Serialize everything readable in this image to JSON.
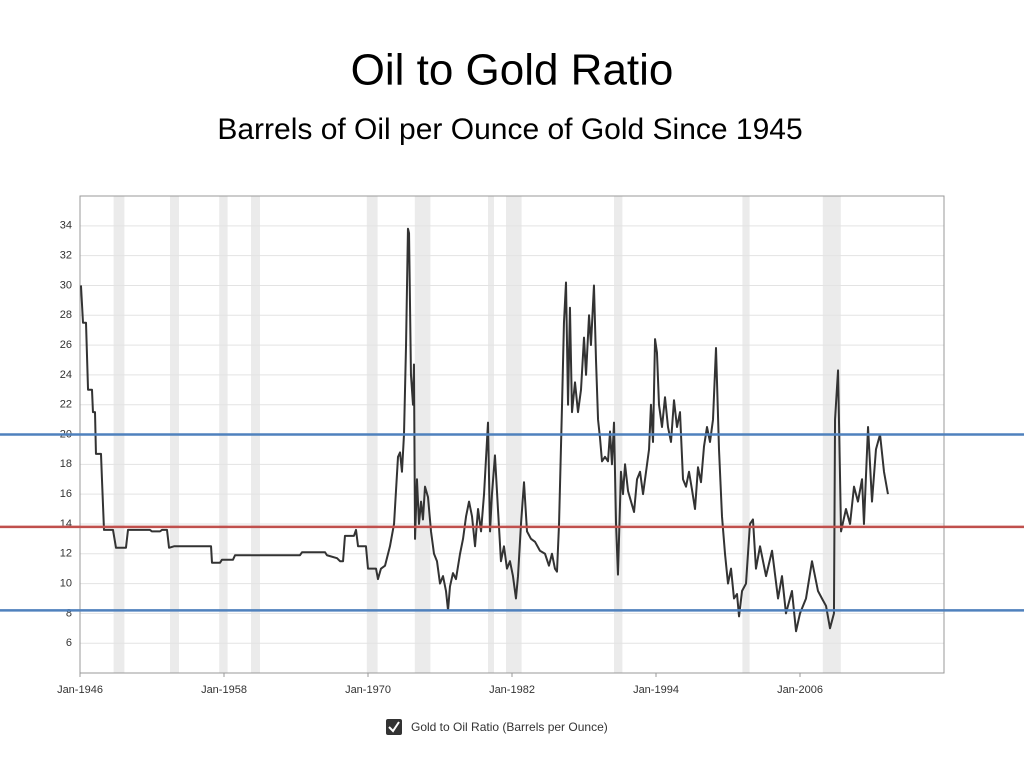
{
  "chart_data": {
    "type": "line",
    "title": "Oil to Gold Ratio",
    "subtitle": "Barrels of Oil per Ounce of Gold Since 1945",
    "x": [
      1946.08,
      1946.25,
      1946.5,
      1946.67,
      1947.0,
      1947.08,
      1947.25,
      1947.33,
      1947.75,
      1947.83,
      1948.0,
      1948.75,
      1949.0,
      1949.83,
      1950.0,
      1951.83,
      1952.0,
      1952.67,
      1952.83,
      1953.25,
      1953.42,
      1953.83,
      1956.92,
      1957.0,
      1957.67,
      1957.83,
      1958.75,
      1958.92,
      1964.33,
      1964.5,
      1966.42,
      1966.58,
      1967.42,
      1967.67,
      1967.92,
      1968.08,
      1968.83,
      1969.0,
      1969.17,
      1969.83,
      1970.0,
      1970.67,
      1970.83,
      1971.08,
      1971.42,
      1971.83,
      1972.17,
      1972.5,
      1972.67,
      1972.83,
      1973.0,
      1973.17,
      1973.33,
      1973.42,
      1973.58,
      1973.75,
      1973.83,
      1973.92,
      1974.08,
      1974.25,
      1974.42,
      1974.58,
      1974.75,
      1975.0,
      1975.25,
      1975.5,
      1975.75,
      1976.0,
      1976.25,
      1976.5,
      1976.67,
      1976.83,
      1977.08,
      1977.33,
      1977.67,
      1977.92,
      1978.17,
      1978.42,
      1978.67,
      1978.92,
      1979.17,
      1979.42,
      1979.67,
      1980.0,
      1980.17,
      1980.33,
      1980.58,
      1980.83,
      1981.08,
      1981.33,
      1981.58,
      1981.83,
      1982.08,
      1982.33,
      1982.5,
      1982.75,
      1983.0,
      1983.25,
      1983.58,
      1983.92,
      1984.33,
      1984.75,
      1985.08,
      1985.33,
      1985.58,
      1985.75,
      1985.92,
      1986.17,
      1986.33,
      1986.5,
      1986.67,
      1986.83,
      1987.0,
      1987.25,
      1987.5,
      1987.75,
      1988.0,
      1988.17,
      1988.42,
      1988.58,
      1988.83,
      1989.0,
      1989.17,
      1989.33,
      1989.5,
      1989.75,
      1990.0,
      1990.17,
      1990.33,
      1990.5,
      1990.67,
      1990.83,
      1991.08,
      1991.25,
      1991.42,
      1991.67,
      1991.92,
      1992.17,
      1992.42,
      1992.67,
      1992.92,
      1993.17,
      1993.42,
      1993.58,
      1993.75,
      1993.92,
      1994.08,
      1994.25,
      1994.5,
      1994.75,
      1995.0,
      1995.25,
      1995.5,
      1995.75,
      1996.0,
      1996.25,
      1996.5,
      1996.75,
      1997.0,
      1997.25,
      1997.5,
      1997.75,
      1998.0,
      1998.25,
      1998.5,
      1998.75,
      1999.0,
      1999.25,
      1999.5,
      1999.75,
      2000.0,
      2000.25,
      2000.5,
      2000.75,
      2000.92,
      2001.17,
      2001.5,
      2001.83,
      2002.08,
      2002.33,
      2002.67,
      2003.17,
      2003.67,
      2004.17,
      2004.5,
      2004.83,
      2005.33,
      2005.67,
      2006.0,
      2006.5,
      2007.0,
      2007.5,
      2007.83,
      2008.17,
      2008.5,
      2008.83,
      2008.92,
      2009.17,
      2009.42,
      2009.83,
      2010.17,
      2010.5,
      2010.83,
      2011.17,
      2011.33,
      2011.67,
      2012.0,
      2012.33,
      2012.67,
      2013.0,
      2013.33
    ],
    "series": [
      {
        "name": "Gold to Oil Ratio (Barrels per Ounce)",
        "color": "#333333",
        "values": [
          30,
          27.5,
          27.5,
          23,
          23,
          21.5,
          21.5,
          18.7,
          18.7,
          17,
          13.6,
          13.6,
          12.4,
          12.4,
          13.6,
          13.6,
          13.5,
          13.5,
          13.6,
          13.6,
          12.4,
          12.5,
          12.5,
          11.4,
          11.4,
          11.6,
          11.6,
          11.9,
          11.9,
          12.1,
          12.1,
          11.9,
          11.7,
          11.5,
          11.5,
          13.2,
          13.2,
          13.6,
          12.5,
          12.5,
          11.0,
          11.0,
          10.3,
          11.0,
          11.2,
          12.5,
          14,
          18.5,
          18.8,
          17.5,
          20,
          26,
          33.8,
          33.5,
          24,
          22,
          24.7,
          13,
          17,
          14,
          15.5,
          14.3,
          16.5,
          15.8,
          13.5,
          12,
          11.5,
          10,
          10.5,
          9.5,
          8.2,
          9.8,
          10.7,
          10.3,
          12,
          13,
          14.5,
          15.5,
          14.5,
          12.5,
          15,
          13.5,
          16,
          20.8,
          13.5,
          16,
          18.6,
          15,
          11.5,
          12.5,
          11,
          11.5,
          10.5,
          9,
          10.5,
          14,
          16.8,
          13.5,
          13,
          12.8,
          12.2,
          12,
          11.2,
          12,
          11,
          10.8,
          14,
          22,
          27.5,
          30.2,
          22,
          28.5,
          21.5,
          23.5,
          21.5,
          23,
          26.5,
          24,
          28,
          26,
          30,
          25,
          21,
          19.8,
          18.2,
          18.5,
          18.2,
          20.2,
          18,
          20.8,
          14,
          10.6,
          17.5,
          16,
          18,
          16.2,
          15.5,
          14.8,
          17,
          17.5,
          16,
          17.5,
          19,
          22,
          19.5,
          26.4,
          25.5,
          22,
          20.5,
          22.5,
          20.5,
          19.5,
          22.3,
          20.5,
          21.5,
          17,
          16.5,
          17.5,
          16.3,
          15,
          17.8,
          16.8,
          19.2,
          20.5,
          19.5,
          21,
          25.8,
          19,
          14.5,
          12,
          10,
          11,
          9,
          9.3,
          7.8,
          9.5,
          10,
          14,
          14.3,
          11,
          12.5,
          10.5,
          12.2,
          9,
          10.5,
          8,
          9.5,
          6.8,
          8,
          9,
          11.5,
          9.5,
          9,
          8.5,
          7,
          8,
          21,
          24.3,
          13.5,
          15,
          14,
          16.5,
          15.5,
          17,
          14,
          20.5,
          15.5,
          19,
          20,
          17.5,
          16
        ]
      }
    ],
    "xlim": [
      1946,
      2018
    ],
    "ylim": [
      4,
      36
    ],
    "xticks": [
      {
        "value": 1946,
        "label": "Jan-1946"
      },
      {
        "value": 1958,
        "label": "Jan-1958"
      },
      {
        "value": 1970,
        "label": "Jan-1970"
      },
      {
        "value": 1982,
        "label": "Jan-1982"
      },
      {
        "value": 1994,
        "label": "Jan-1994"
      },
      {
        "value": 2006,
        "label": "Jan-2006"
      }
    ],
    "yticks": [
      6,
      8,
      10,
      12,
      14,
      16,
      18,
      20,
      22,
      24,
      26,
      28,
      30,
      32,
      34
    ],
    "grid": true,
    "shaded_periods": [
      [
        1948.8,
        1949.7
      ],
      [
        1953.5,
        1954.25
      ],
      [
        1957.6,
        1958.3
      ],
      [
        1960.25,
        1961.0
      ],
      [
        1969.9,
        1970.8
      ],
      [
        1973.9,
        1975.2
      ],
      [
        1980.0,
        1980.5
      ],
      [
        1981.5,
        1982.8
      ],
      [
        1990.5,
        1991.2
      ],
      [
        2001.2,
        2001.8
      ],
      [
        2007.9,
        2009.4
      ]
    ],
    "shade_color": "#ebebeb",
    "reference_lines": [
      {
        "value": 20,
        "color": "#4f81bd"
      },
      {
        "value": 13.8,
        "color": "#c0504d"
      },
      {
        "value": 8.2,
        "color": "#4f81bd"
      }
    ]
  }
}
